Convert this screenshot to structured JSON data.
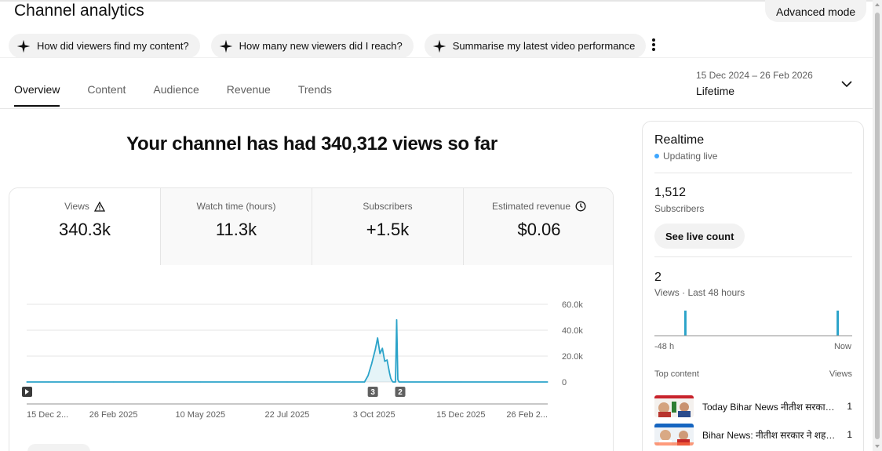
{
  "header": {
    "title": "Channel analytics",
    "advanced_mode_label": "Advanced mode"
  },
  "chips": [
    {
      "label": "How did viewers find my content?"
    },
    {
      "label": "How many new viewers did I reach?"
    },
    {
      "label": "Summarise my latest video performance"
    }
  ],
  "tabs": [
    {
      "label": "Overview",
      "active": true
    },
    {
      "label": "Content",
      "active": false
    },
    {
      "label": "Audience",
      "active": false
    },
    {
      "label": "Revenue",
      "active": false
    },
    {
      "label": "Trends",
      "active": false
    }
  ],
  "date_range": {
    "range": "15 Dec 2024 – 26 Feb 2026",
    "label": "Lifetime"
  },
  "headline": "Your channel has had 340,312 views so far",
  "metrics": [
    {
      "label": "Views",
      "value": "340.3k",
      "icon": "warning-icon"
    },
    {
      "label": "Watch time (hours)",
      "value": "11.3k"
    },
    {
      "label": "Subscribers",
      "value": "+1.5k"
    },
    {
      "label": "Estimated revenue",
      "value": "$0.06",
      "icon": "clock-icon"
    }
  ],
  "chart_data": {
    "type": "line",
    "x": [
      "15 Dec 2024",
      "2 Jan 2025",
      "26 Feb 2025",
      "10 May 2025",
      "22 Jul 2025",
      "25 Sep 2025",
      "28 Sep 2025",
      "1 Oct 2025",
      "4 Oct 2025",
      "6 Oct 2025",
      "8 Oct 2025",
      "10 Oct 2025",
      "12 Oct 2025",
      "14 Oct 2025",
      "16 Oct 2025",
      "17 Oct 2025",
      "18 Oct 2025",
      "19 Oct 2025",
      "20 Oct 2025",
      "21 Oct 2025",
      "22 Oct 2025",
      "23 Oct 2025",
      "24 Oct 2025",
      "25 Oct 2025",
      "26 Oct 2025",
      "15 Dec 2025",
      "26 Feb 2026"
    ],
    "series": [
      {
        "values": [
          0,
          0,
          0,
          0,
          0,
          0,
          5000,
          14000,
          25000,
          34000,
          22000,
          26000,
          16000,
          17000,
          7000,
          3000,
          1000,
          0,
          0,
          0,
          48000,
          2000,
          0,
          0,
          0,
          0,
          0
        ]
      }
    ],
    "x_tick_labels": [
      "15 Dec 2...",
      "26 Feb 2025",
      "10 May 2025",
      "22 Jul 2025",
      "3 Oct 2025",
      "15 Dec 2025",
      "26 Feb 2..."
    ],
    "y_tick_labels": [
      "0",
      "20.0k",
      "40.0k",
      "60.0k"
    ],
    "ylim": [
      0,
      60000
    ],
    "markers": [
      {
        "label": "3",
        "date": "2 Oct 2025"
      },
      {
        "label": "2",
        "date": "25 Oct 2025"
      }
    ],
    "play_marker_date": "15 Dec 2024",
    "grid": true,
    "line_color": "#2ba3c9"
  },
  "realtime": {
    "title": "Realtime",
    "status": "Updating live",
    "subscribers_value": "1,512",
    "subscribers_label": "Subscribers",
    "live_count_button": "See live count",
    "views_value": "2",
    "views_label": "Views · Last 48 hours",
    "mini_chart": {
      "hourly_views": [
        0,
        0,
        0,
        0,
        0,
        0,
        0,
        1,
        0,
        0,
        0,
        0,
        0,
        0,
        0,
        0,
        0,
        0,
        0,
        0,
        0,
        0,
        0,
        0,
        0,
        0,
        0,
        0,
        0,
        0,
        0,
        0,
        0,
        0,
        0,
        0,
        0,
        0,
        0,
        0,
        0,
        0,
        0,
        0,
        1,
        0,
        0,
        0
      ]
    },
    "axis_left": "-48 h",
    "axis_right": "Now",
    "top_content_label": "Top content",
    "views_col_label": "Views",
    "items": [
      {
        "title": "Today Bihar News नीतीश सरकार ...",
        "count": "1"
      },
      {
        "title": "Bihar News: नीतीश सरकार ने शहरी ...",
        "count": "1"
      }
    ]
  }
}
